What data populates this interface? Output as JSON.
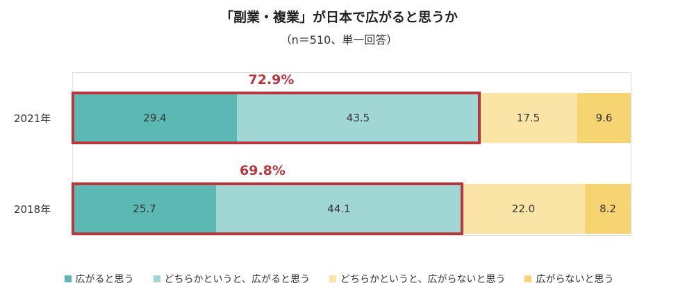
{
  "chart_data": {
    "type": "bar",
    "orientation": "horizontal",
    "stacked": true,
    "title": "「副業・複業」が日本で広がると思うか",
    "subtitle": "（n＝510、単一回答）",
    "categories": [
      "2021年",
      "2018年"
    ],
    "series": [
      {
        "name": "広がると思う",
        "values": [
          29.4,
          25.7
        ],
        "color": "#5cb8b3"
      },
      {
        "name": "どちらかというと、広がると思う",
        "values": [
          43.5,
          44.1
        ],
        "color": "#a0d7d4"
      },
      {
        "name": "どちらかというと、広がらないと思う",
        "values": [
          17.5,
          22.0
        ],
        "color": "#fae4a6"
      },
      {
        "name": "広がらないと思う",
        "values": [
          9.6,
          8.2
        ],
        "color": "#f6d472"
      }
    ],
    "value_labels": [
      [
        "29.4",
        "43.5",
        "17.5",
        "9.6"
      ],
      [
        "25.7",
        "44.1",
        "22.0",
        "8.2"
      ]
    ],
    "annotations": [
      {
        "category": "2021年",
        "text": "72.9%"
      },
      {
        "category": "2018年",
        "text": "69.8%"
      }
    ],
    "highlight_color": "#b8373f",
    "legend_position": "bottom",
    "grid": false
  }
}
